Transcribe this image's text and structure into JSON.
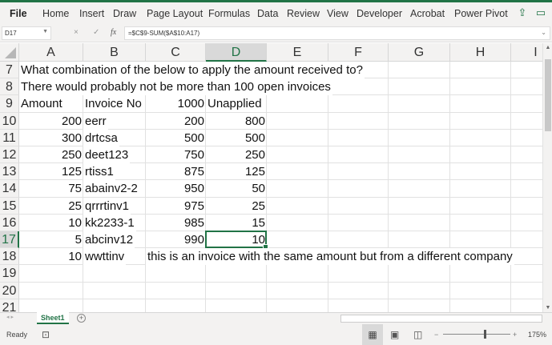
{
  "ribbon": {
    "tabs": [
      "File",
      "Home",
      "Insert",
      "Draw",
      "Page Layout",
      "Formulas",
      "Data",
      "Review",
      "View",
      "Developer",
      "Acrobat",
      "Power Pivot"
    ],
    "share_icon": "share-icon",
    "comments_icon": "comment-icon"
  },
  "formula_bar": {
    "name_box": "D17",
    "cancel_icon": "×",
    "enter_icon": "✓",
    "fx_label": "fx",
    "formula": "=$C$9-SUM($A$10:A17)"
  },
  "grid": {
    "columns": [
      "A",
      "B",
      "C",
      "D",
      "E",
      "F",
      "G",
      "H",
      "I"
    ],
    "selected_column": "D",
    "selected_cell": "D17",
    "rows": [
      {
        "num": "7",
        "cells": [
          {
            "col": "A",
            "value": "What combination of the below to apply the amount received to?",
            "align": "left"
          }
        ]
      },
      {
        "num": "8",
        "cells": [
          {
            "col": "A",
            "value": "There would probably not be more than 100 open invoices",
            "align": "left"
          }
        ]
      },
      {
        "num": "9",
        "cells": [
          {
            "col": "A",
            "value": "Amount",
            "align": "left"
          },
          {
            "col": "B",
            "value": "Invoice No",
            "align": "left"
          },
          {
            "col": "C",
            "value": "1000",
            "align": "right"
          },
          {
            "col": "D",
            "value": "Unapplied",
            "align": "left"
          }
        ]
      },
      {
        "num": "10",
        "cells": [
          {
            "col": "A",
            "value": "200",
            "align": "right"
          },
          {
            "col": "B",
            "value": "eerr",
            "align": "left"
          },
          {
            "col": "C",
            "value": "200",
            "align": "right"
          },
          {
            "col": "D",
            "value": "800",
            "align": "right"
          }
        ]
      },
      {
        "num": "11",
        "cells": [
          {
            "col": "A",
            "value": "300",
            "align": "right"
          },
          {
            "col": "B",
            "value": "drtcsa",
            "align": "left"
          },
          {
            "col": "C",
            "value": "500",
            "align": "right"
          },
          {
            "col": "D",
            "value": "500",
            "align": "right"
          }
        ]
      },
      {
        "num": "12",
        "cells": [
          {
            "col": "A",
            "value": "250",
            "align": "right"
          },
          {
            "col": "B",
            "value": "deet123",
            "align": "left"
          },
          {
            "col": "C",
            "value": "750",
            "align": "right"
          },
          {
            "col": "D",
            "value": "250",
            "align": "right"
          }
        ]
      },
      {
        "num": "13",
        "cells": [
          {
            "col": "A",
            "value": "125",
            "align": "right"
          },
          {
            "col": "B",
            "value": "rtiss1",
            "align": "left"
          },
          {
            "col": "C",
            "value": "875",
            "align": "right"
          },
          {
            "col": "D",
            "value": "125",
            "align": "right"
          }
        ]
      },
      {
        "num": "14",
        "cells": [
          {
            "col": "A",
            "value": "75",
            "align": "right"
          },
          {
            "col": "B",
            "value": "abainv2-2",
            "align": "left"
          },
          {
            "col": "C",
            "value": "950",
            "align": "right"
          },
          {
            "col": "D",
            "value": "50",
            "align": "right"
          }
        ]
      },
      {
        "num": "15",
        "cells": [
          {
            "col": "A",
            "value": "25",
            "align": "right"
          },
          {
            "col": "B",
            "value": "qrrrtinv1",
            "align": "left"
          },
          {
            "col": "C",
            "value": "975",
            "align": "right"
          },
          {
            "col": "D",
            "value": "25",
            "align": "right"
          }
        ]
      },
      {
        "num": "16",
        "cells": [
          {
            "col": "A",
            "value": "10",
            "align": "right"
          },
          {
            "col": "B",
            "value": "kk2233-1",
            "align": "left"
          },
          {
            "col": "C",
            "value": "985",
            "align": "right"
          },
          {
            "col": "D",
            "value": "15",
            "align": "right"
          }
        ]
      },
      {
        "num": "17",
        "cells": [
          {
            "col": "A",
            "value": "5",
            "align": "right"
          },
          {
            "col": "B",
            "value": "abcinv12",
            "align": "left"
          },
          {
            "col": "C",
            "value": "990",
            "align": "right"
          },
          {
            "col": "D",
            "value": "10",
            "align": "right"
          }
        ]
      },
      {
        "num": "18",
        "cells": [
          {
            "col": "A",
            "value": "10",
            "align": "right"
          },
          {
            "col": "B",
            "value": "wwttinv",
            "align": "left"
          },
          {
            "col": "C",
            "value": "this is  an invoice with the same amount but from a different company",
            "align": "left"
          }
        ]
      },
      {
        "num": "19",
        "cells": []
      },
      {
        "num": "20",
        "cells": []
      },
      {
        "num": "21",
        "cells": []
      }
    ]
  },
  "sheet_tabs": {
    "active": "Sheet1",
    "add_icon": "+"
  },
  "status_bar": {
    "ready": "Ready",
    "zoom": "175%",
    "zoom_minus": "−",
    "zoom_plus": "+"
  },
  "colors": {
    "accent": "#217346"
  }
}
